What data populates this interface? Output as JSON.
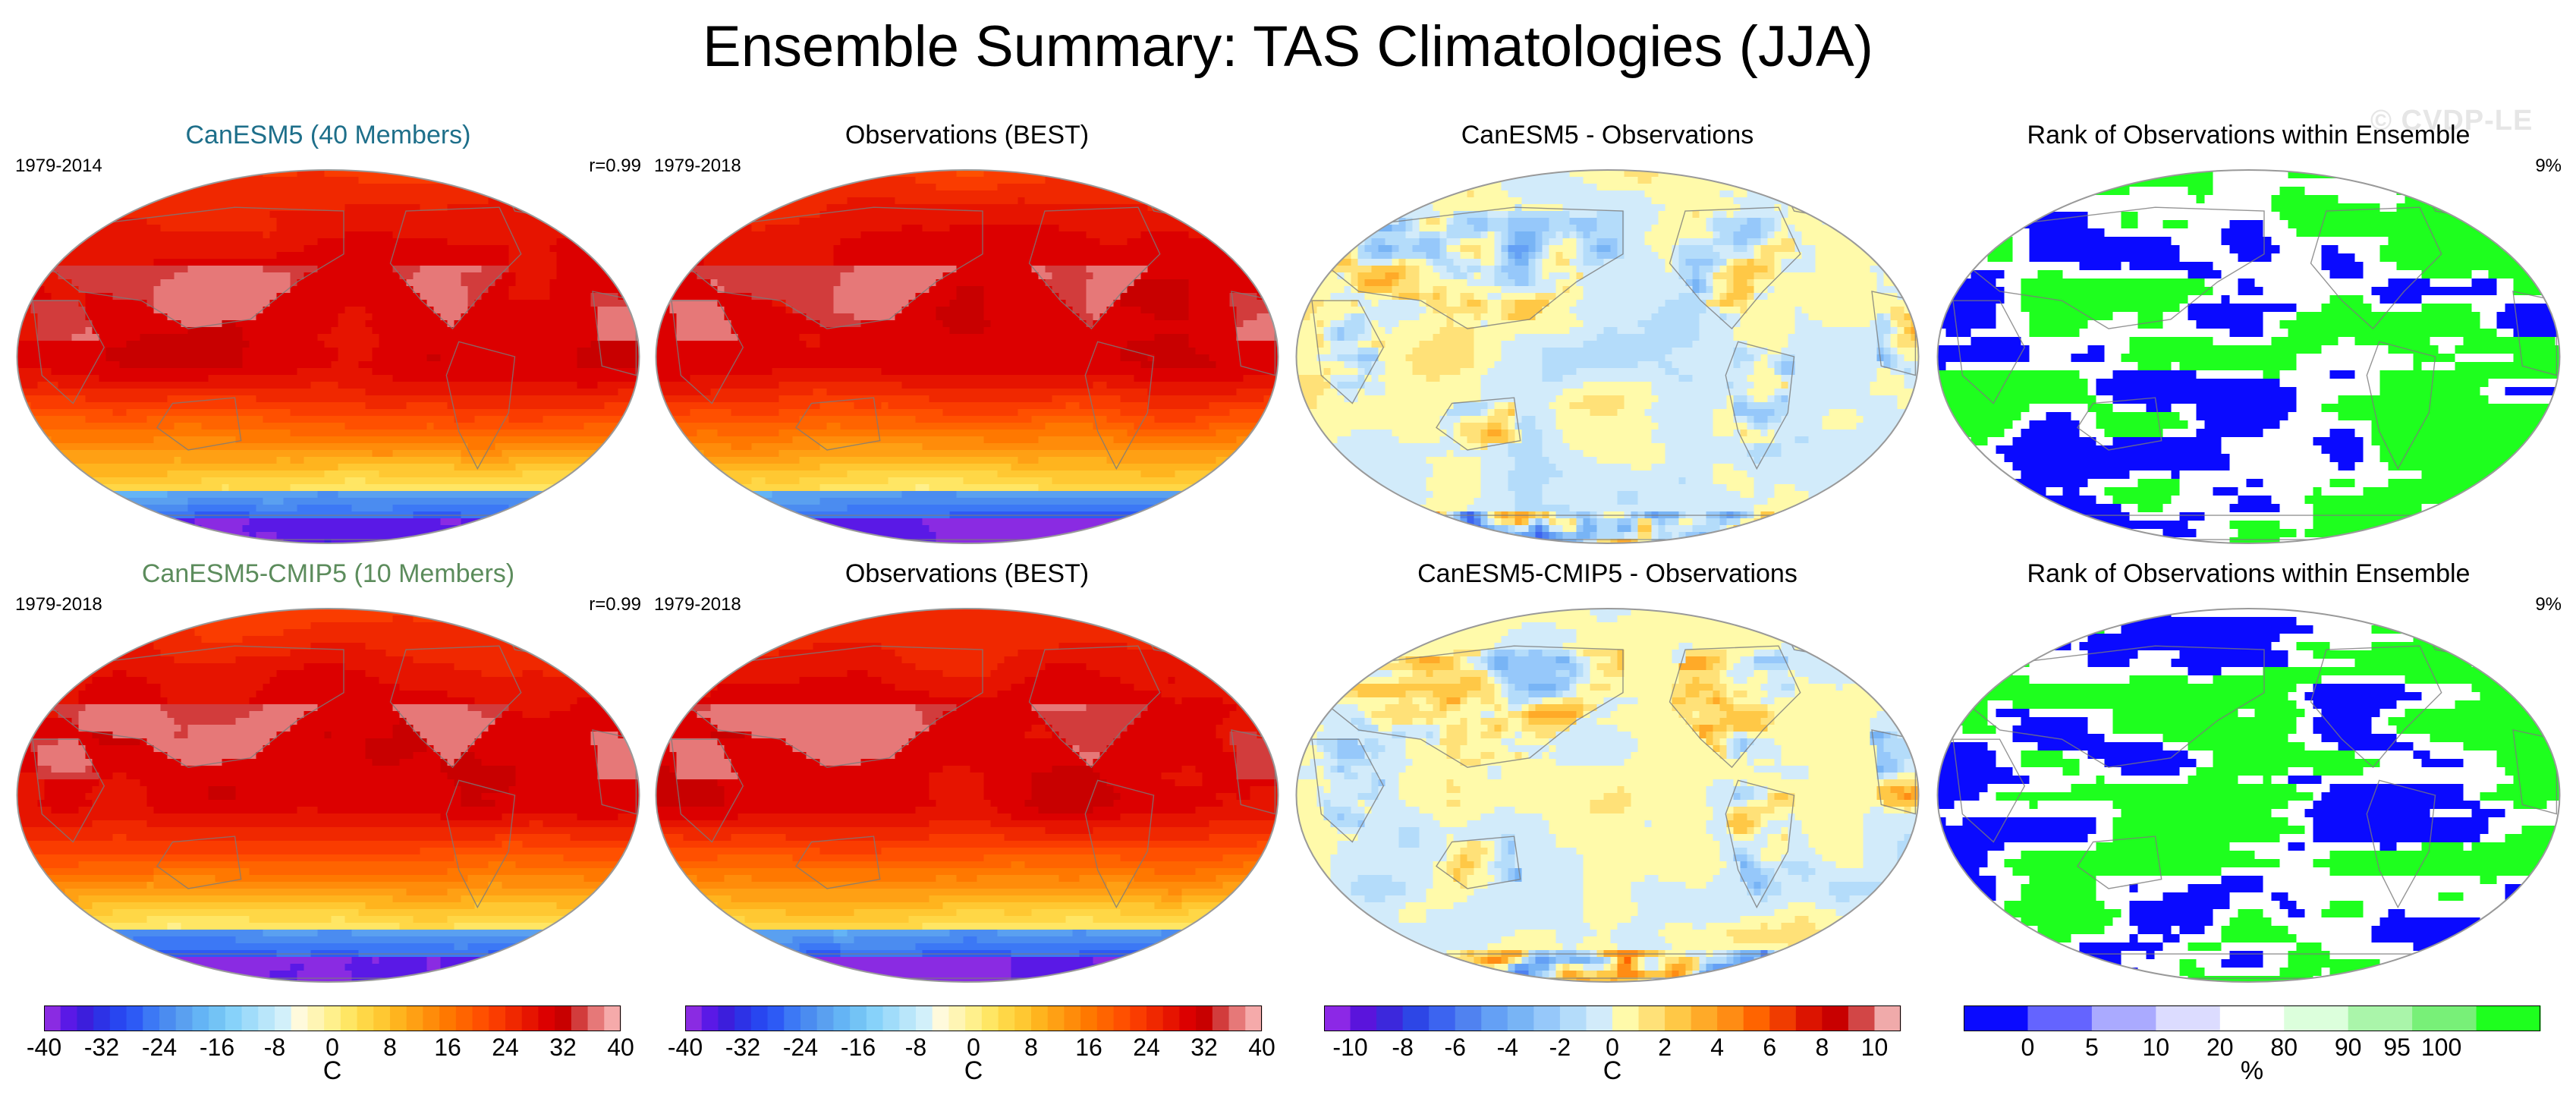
{
  "title": "Ensemble Summary: TAS Climatologies (JJA)",
  "watermark": "© CVDP-LE",
  "colors": {
    "land_outline": "#7a7a7a",
    "rank_below5": "#0a0aff",
    "rank_mid": "#ffffff",
    "rank_above95": "#1eff1e"
  },
  "panels": [
    {
      "id": "p1",
      "title": "CanESM5 (40 Members)",
      "title_style": "model1",
      "left_label": "1979-2014",
      "right_label": "r=0.99",
      "kind": "clim"
    },
    {
      "id": "p2",
      "title": "Observations (BEST)",
      "title_style": "plain",
      "left_label": "1979-2018",
      "right_label": "",
      "kind": "clim"
    },
    {
      "id": "p3",
      "title": "CanESM5 - Observations",
      "title_style": "plain",
      "left_label": "",
      "right_label": "",
      "kind": "diff"
    },
    {
      "id": "p4",
      "title": "Rank of Observations within Ensemble",
      "title_style": "plain",
      "left_label": "",
      "right_label": "9%",
      "kind": "rank"
    },
    {
      "id": "p5",
      "title": "CanESM5-CMIP5 (10 Members)",
      "title_style": "model2",
      "left_label": "1979-2018",
      "right_label": "r=0.99",
      "kind": "clim"
    },
    {
      "id": "p6",
      "title": "Observations (BEST)",
      "title_style": "plain",
      "left_label": "1979-2018",
      "right_label": "",
      "kind": "clim"
    },
    {
      "id": "p7",
      "title": "CanESM5-CMIP5 - Observations",
      "title_style": "plain",
      "left_label": "",
      "right_label": "",
      "kind": "diff"
    },
    {
      "id": "p8",
      "title": "Rank of Observations within Ensemble",
      "title_style": "plain",
      "left_label": "",
      "right_label": "9%",
      "kind": "rank"
    }
  ],
  "chart_data": [
    {
      "type": "colorbar",
      "name": "climatology",
      "unit": "C",
      "range": [
        -40,
        40
      ],
      "ticks": [
        -40,
        -32,
        -24,
        -16,
        -8,
        0,
        8,
        16,
        24,
        32,
        40
      ],
      "colors": [
        "#8a2be2",
        "#5a19e6",
        "#3c1edc",
        "#2d32e6",
        "#2846f0",
        "#2d5af5",
        "#3c78f5",
        "#4b8cf0",
        "#5aa0f0",
        "#64b4f5",
        "#73c3f5",
        "#87d2fa",
        "#a0dcfa",
        "#b9e6fa",
        "#d2f0fa",
        "#fffadc",
        "#fff5b4",
        "#fff08c",
        "#ffe664",
        "#ffd746",
        "#ffc832",
        "#ffb41e",
        "#ffa014",
        "#ff8c0a",
        "#ff7800",
        "#ff6400",
        "#ff5000",
        "#fa3c00",
        "#f02800",
        "#e61400",
        "#dc0000",
        "#c80000",
        "#d23c3c",
        "#e67878",
        "#f5aaaa"
      ]
    },
    {
      "type": "colorbar",
      "name": "difference",
      "unit": "C",
      "range": [
        -11,
        11
      ],
      "ticks": [
        -10,
        -8,
        -6,
        -4,
        -2,
        0,
        2,
        4,
        6,
        8,
        10
      ],
      "colors": [
        "#8c28e6",
        "#5a14dc",
        "#3c28dc",
        "#2d46e6",
        "#3c64f0",
        "#5082f0",
        "#64a0f5",
        "#78b4f5",
        "#96c8fa",
        "#b4dcfa",
        "#d2ebfa",
        "#fffaaa",
        "#ffe178",
        "#ffc846",
        "#ffaa28",
        "#ff8c14",
        "#ff6400",
        "#f03c00",
        "#dc1400",
        "#c80000",
        "#d24646",
        "#f0aaaa"
      ]
    },
    {
      "type": "colorbar",
      "name": "rank",
      "unit": "%",
      "ticks": [
        0,
        5,
        10,
        20,
        80,
        90,
        95,
        100
      ],
      "bins": [
        {
          "label": "<0",
          "color": "#0a0aff"
        },
        {
          "label": "0-5",
          "color": "#6464ff"
        },
        {
          "label": "5-10",
          "color": "#aaaaff"
        },
        {
          "label": "10-20",
          "color": "#dcdcff"
        },
        {
          "label": "20-80",
          "color": "#ffffff"
        },
        {
          "label": "80-90",
          "color": "#dcffdc"
        },
        {
          "label": "90-95",
          "color": "#aaf5aa"
        },
        {
          "label": "95-100",
          "color": "#78f078"
        },
        {
          "label": ">100",
          "color": "#1eff1e"
        }
      ]
    }
  ]
}
